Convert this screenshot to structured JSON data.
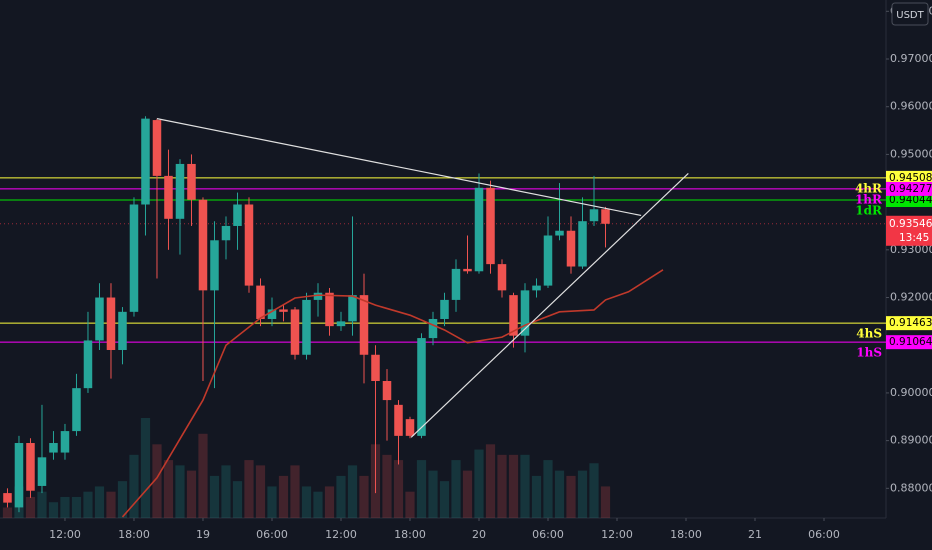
{
  "chart_data": {
    "type": "candlestick",
    "currency": "USDT",
    "up_color": "#26a69a",
    "down_color": "#ef5350",
    "x": [
      -17,
      -16,
      -15,
      -14,
      -13,
      -12,
      -11,
      -10,
      -9,
      -8,
      -7,
      -6,
      -5,
      -4,
      -3,
      -2,
      -1,
      0,
      1,
      2,
      3,
      4,
      5,
      6,
      7,
      8,
      9,
      10,
      11,
      12,
      13,
      14,
      15,
      16,
      17,
      18,
      19,
      20,
      21,
      22,
      23,
      24,
      25,
      26,
      27,
      28,
      29,
      30,
      31,
      32,
      33,
      34,
      35
    ],
    "open": [
      0.879,
      0.876,
      0.8895,
      0.8805,
      0.8875,
      0.8875,
      0.892,
      0.901,
      0.911,
      0.92,
      0.909,
      0.917,
      0.9395,
      0.9572,
      0.9455,
      0.9365,
      0.948,
      0.9405,
      0.9215,
      0.932,
      0.935,
      0.9395,
      0.9225,
      0.9155,
      0.9175,
      0.9175,
      0.908,
      0.9195,
      0.921,
      0.914,
      0.915,
      0.9205,
      0.908,
      0.9025,
      0.8975,
      0.8945,
      0.891,
      0.9115,
      0.9155,
      0.9195,
      0.926,
      0.9255,
      0.943,
      0.927,
      0.9205,
      0.912,
      0.9215,
      0.9225,
      0.933,
      0.934,
      0.9265,
      0.936,
      0.9385
    ],
    "high": [
      0.88,
      0.891,
      0.8905,
      0.8975,
      0.892,
      0.8935,
      0.904,
      0.917,
      0.923,
      0.923,
      0.918,
      0.941,
      0.958,
      0.9575,
      0.951,
      0.949,
      0.95,
      0.941,
      0.936,
      0.937,
      0.942,
      0.941,
      0.924,
      0.92,
      0.9185,
      0.918,
      0.921,
      0.923,
      0.922,
      0.917,
      0.937,
      0.925,
      0.91,
      0.905,
      0.8985,
      0.895,
      0.9125,
      0.917,
      0.921,
      0.928,
      0.933,
      0.946,
      0.9445,
      0.928,
      0.921,
      0.923,
      0.924,
      0.937,
      0.944,
      0.937,
      0.941,
      0.9455,
      0.939
    ],
    "low": [
      0.876,
      0.875,
      0.878,
      0.879,
      0.886,
      0.886,
      0.891,
      0.9,
      0.909,
      0.903,
      0.906,
      0.916,
      0.933,
      0.924,
      0.93,
      0.929,
      0.935,
      0.9025,
      0.901,
      0.928,
      0.93,
      0.921,
      0.914,
      0.914,
      0.915,
      0.907,
      0.907,
      0.916,
      0.912,
      0.913,
      0.912,
      0.902,
      0.879,
      0.89,
      0.885,
      0.8905,
      0.8905,
      0.91,
      0.914,
      0.917,
      0.925,
      0.925,
      0.925,
      0.92,
      0.9095,
      0.9085,
      0.92,
      0.922,
      0.932,
      0.925,
      0.926,
      0.935,
      0.9305
    ],
    "close": [
      0.877,
      0.8895,
      0.8795,
      0.8865,
      0.8895,
      0.892,
      0.901,
      0.911,
      0.92,
      0.909,
      0.917,
      0.9395,
      0.9575,
      0.9455,
      0.9365,
      0.948,
      0.9405,
      0.9215,
      0.932,
      0.935,
      0.9395,
      0.9225,
      0.9155,
      0.9175,
      0.917,
      0.908,
      0.9195,
      0.921,
      0.914,
      0.915,
      0.9205,
      0.908,
      0.9025,
      0.8985,
      0.891,
      0.891,
      0.9115,
      0.9155,
      0.9195,
      0.926,
      0.9255,
      0.943,
      0.927,
      0.9215,
      0.912,
      0.9215,
      0.9225,
      0.933,
      0.934,
      0.9265,
      0.936,
      0.9385,
      0.93546
    ],
    "volume": [
      10,
      30,
      20,
      25,
      15,
      20,
      20,
      25,
      30,
      25,
      35,
      60,
      95,
      70,
      55,
      50,
      45,
      80,
      40,
      50,
      35,
      55,
      50,
      30,
      40,
      50,
      30,
      25,
      30,
      40,
      50,
      40,
      70,
      60,
      55,
      25,
      55,
      45,
      35,
      55,
      45,
      65,
      70,
      60,
      60,
      60,
      40,
      55,
      45,
      40,
      45,
      52,
      30
    ],
    "moving_average": {
      "color": "#c0392b",
      "x": [
        -7,
        -4,
        0,
        2,
        5,
        8,
        10,
        13,
        15,
        18,
        21,
        23,
        26,
        28,
        31,
        34,
        35,
        37,
        40
      ],
      "values": [
        0.874,
        0.8822,
        0.8985,
        0.91,
        0.9157,
        0.9199,
        0.9205,
        0.9203,
        0.9184,
        0.9163,
        0.9132,
        0.9105,
        0.9117,
        0.9142,
        0.917,
        0.9174,
        0.9195,
        0.9212,
        0.9258
      ]
    },
    "trendlines": [
      {
        "color": "#e0e0e0",
        "x": [
          -4,
          38.1
        ],
        "y": [
          0.9575,
          0.9372
        ]
      },
      {
        "color": "#e0e0e0",
        "x": [
          18.1,
          42.2
        ],
        "y": [
          0.8907,
          0.946
        ]
      }
    ],
    "levels": [
      {
        "value": 0.94044,
        "color": "#00e600",
        "tag": "1dR"
      },
      {
        "value": 0.94508,
        "color": "#ffff3c",
        "tag": "4hR"
      },
      {
        "value": 0.94277,
        "color": "#ff00ff",
        "tag": "1hR"
      },
      {
        "value": 0.91463,
        "color": "#ffff3c",
        "tag": "4hS"
      },
      {
        "value": 0.91064,
        "color": "#ff00ff",
        "tag": "1hS"
      }
    ],
    "last_price": {
      "value": 0.93546,
      "countdown": "13:45",
      "color": "#f23645"
    },
    "xlim": [
      -17.65,
      59.39
    ],
    "ylim": [
      0.87378,
      0.98237
    ],
    "xticks": [
      {
        "value": -12,
        "label": "12:00"
      },
      {
        "value": -6,
        "label": "18:00"
      },
      {
        "value": 0,
        "label": "19"
      },
      {
        "value": 6,
        "label": "06:00"
      },
      {
        "value": 12,
        "label": "12:00"
      },
      {
        "value": 18,
        "label": "18:00"
      },
      {
        "value": 24,
        "label": "20"
      },
      {
        "value": 30,
        "label": "06:00"
      },
      {
        "value": 36,
        "label": "12:00"
      },
      {
        "value": 42,
        "label": "18:00"
      },
      {
        "value": 48,
        "label": "21"
      },
      {
        "value": 54,
        "label": "06:00"
      }
    ],
    "yticks": [
      {
        "value": 0.88,
        "label": "0.88000"
      },
      {
        "value": 0.89,
        "label": "0.89000"
      },
      {
        "value": 0.9,
        "label": "0.90000"
      },
      {
        "value": 0.91,
        "label": "0.91000"
      },
      {
        "value": 0.92,
        "label": "0.92000"
      },
      {
        "value": 0.93,
        "label": "0.93000"
      },
      {
        "value": 0.94,
        "label": "0.94000"
      },
      {
        "value": 0.95,
        "label": "0.95000"
      },
      {
        "value": 0.96,
        "label": "0.96000"
      },
      {
        "value": 0.97,
        "label": "0.97000"
      },
      {
        "value": 0.98,
        "label": "0.98000"
      }
    ]
  }
}
